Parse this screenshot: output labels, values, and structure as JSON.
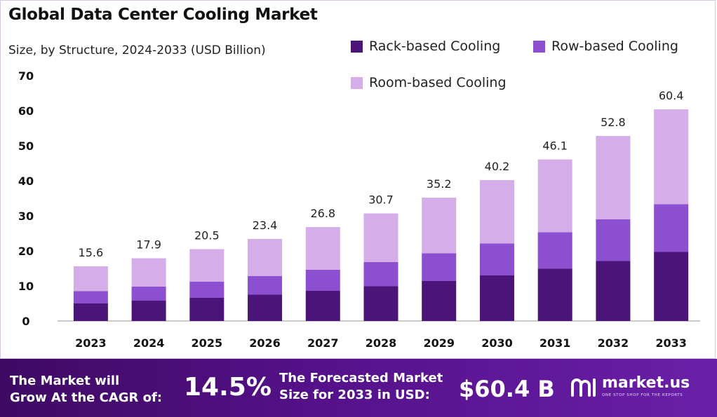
{
  "chart_data": {
    "type": "bar",
    "stacked": true,
    "title": "Global Data Center Cooling Market",
    "subtitle": "Size, by Structure, 2024-2033 (USD Billion)",
    "categories": [
      "2023",
      "2024",
      "2025",
      "2026",
      "2027",
      "2028",
      "2029",
      "2030",
      "2031",
      "2032",
      "2033"
    ],
    "series": [
      {
        "name": "Rack-based Cooling",
        "color": "#4a1478",
        "values": [
          5.0,
          5.8,
          6.6,
          7.5,
          8.6,
          9.9,
          11.4,
          13.0,
          14.9,
          17.1,
          19.7
        ]
      },
      {
        "name": "Row-based Cooling",
        "color": "#8c4fcf",
        "values": [
          3.5,
          4.0,
          4.6,
          5.3,
          6.0,
          6.9,
          7.9,
          9.1,
          10.4,
          11.9,
          13.6
        ]
      },
      {
        "name": "Room-based Cooling",
        "color": "#d4ade9",
        "values": [
          7.1,
          8.1,
          9.3,
          10.6,
          12.2,
          13.9,
          15.9,
          18.1,
          20.8,
          23.8,
          27.1
        ]
      }
    ],
    "totals": [
      "15.6",
      "17.9",
      "20.5",
      "23.4",
      "26.8",
      "30.7",
      "35.2",
      "40.2",
      "46.1",
      "52.8",
      "60.4"
    ],
    "y_ticks": [
      "0",
      "10",
      "20",
      "30",
      "40",
      "50",
      "60",
      "70"
    ],
    "ylim": [
      0,
      70
    ],
    "grid": false,
    "legend_position": "top-right"
  },
  "footer": {
    "cagr_line1": "The Market will",
    "cagr_line2": "Grow At the CAGR of:",
    "cagr_value": "14.5%",
    "forecast_line1": "The Forecasted Market",
    "forecast_line2": "Size for 2033 in USD:",
    "forecast_value": "$60.4 B",
    "logo_name": "market.us",
    "logo_tagline": "ONE STOP SHOP FOR THE REPORTS"
  }
}
